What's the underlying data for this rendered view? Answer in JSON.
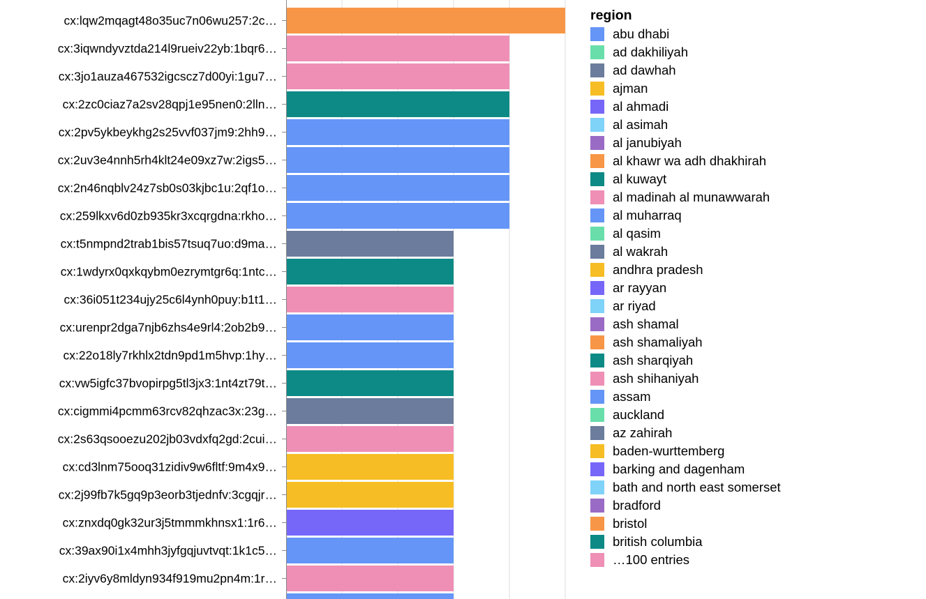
{
  "chart_data": {
    "type": "bar",
    "orientation": "horizontal",
    "x_axis": {
      "min": 0,
      "max": 5,
      "grid": true
    },
    "categories": [
      "cx:lqw2mqagt48o35uc7n06wu257:2c…",
      "cx:3iqwndyvztda214l9rueiv22yb:1bqr6…",
      "cx:3jo1auza467532igcscz7d00yi:1gu7…",
      "cx:2zc0ciaz7a2sv28qpj1e95nen0:2lln…",
      "cx:2pv5ykbeykhg2s25vvf037jm9:2hh9…",
      "cx:2uv3e4nnh5rh4klt24e09xz7w:2igs5…",
      "cx:2n46nqblv24z7sb0s03kjbc1u:2qf1o…",
      "cx:259lkxv6d0zb935kr3xcqrgdna:rkho…",
      "cx:t5nmpnd2trab1bis57tsuq7uo:d9ma…",
      "cx:1wdyrx0qxkqybm0ezrymtgr6q:1ntc…",
      "cx:36i051t234ujy25c6l4ynh0puy:b1t1…",
      "cx:urenpr2dga7njb6zhs4e9rl4:2ob2b9…",
      "cx:22o18ly7rkhlx2tdn9pd1m5hvp:1hy…",
      "cx:vw5igfc37bvopirpg5tl3jx3:1nt4zt79t…",
      "cx:cigmmi4pcmm63rcv82qhzac3x:23g…",
      "cx:2s63qsooezu202jb03vdxfq2gd:2cui…",
      "cx:cd3lnm75ooq31zidiv9w6fltf:9m4x9…",
      "cx:2j99fb7k5gq9p3eorb3tjednfv:3cgqjr…",
      "cx:znxdq0gk32ur3j5tmmmkhnsx1:1r6…",
      "cx:39ax90i1x4mhh3jyfgqjuvtvqt:1k1c5…",
      "cx:2iyv6y8mldyn934f919mu2pn4m:1r…",
      ""
    ],
    "values": [
      5,
      4,
      4,
      4,
      4,
      4,
      4,
      4,
      3,
      3,
      3,
      3,
      3,
      3,
      3,
      3,
      3,
      3,
      3,
      3,
      3,
      3
    ],
    "bar_colors": [
      "#f79646",
      "#ef8fb5",
      "#ef8fb5",
      "#0d8a86",
      "#6495f7",
      "#6495f7",
      "#6495f7",
      "#6495f7",
      "#6b7c9c",
      "#0d8a86",
      "#ef8fb5",
      "#6495f7",
      "#6495f7",
      "#0d8a86",
      "#6b7c9c",
      "#ef8fb5",
      "#f6be24",
      "#f6be24",
      "#7667f9",
      "#6495f7",
      "#ef8fb5",
      "#6495f7"
    ],
    "legend": {
      "title": "region",
      "placement": "right",
      "entries": [
        {
          "label": "abu dhabi",
          "color": "#6495f7"
        },
        {
          "label": "ad dakhiliyah",
          "color": "#69deaa"
        },
        {
          "label": "ad dawhah",
          "color": "#6b7c9c"
        },
        {
          "label": "ajman",
          "color": "#f6be24"
        },
        {
          "label": "al ahmadi",
          "color": "#7667f9"
        },
        {
          "label": "al asimah",
          "color": "#7fd2f8"
        },
        {
          "label": "al janubiyah",
          "color": "#9a6bc5"
        },
        {
          "label": "al khawr wa adh dhakhirah",
          "color": "#f79646"
        },
        {
          "label": "al kuwayt",
          "color": "#0d8a86"
        },
        {
          "label": "al madinah al munawwarah",
          "color": "#ef8fb5"
        },
        {
          "label": "al muharraq",
          "color": "#6495f7"
        },
        {
          "label": "al qasim",
          "color": "#69deaa"
        },
        {
          "label": "al wakrah",
          "color": "#6b7c9c"
        },
        {
          "label": "andhra pradesh",
          "color": "#f6be24"
        },
        {
          "label": "ar rayyan",
          "color": "#7667f9"
        },
        {
          "label": "ar riyad",
          "color": "#7fd2f8"
        },
        {
          "label": "ash shamal",
          "color": "#9a6bc5"
        },
        {
          "label": "ash shamaliyah",
          "color": "#f79646"
        },
        {
          "label": "ash sharqiyah",
          "color": "#0d8a86"
        },
        {
          "label": "ash shihaniyah",
          "color": "#ef8fb5"
        },
        {
          "label": "assam",
          "color": "#6495f7"
        },
        {
          "label": "auckland",
          "color": "#69deaa"
        },
        {
          "label": "az zahirah",
          "color": "#6b7c9c"
        },
        {
          "label": "baden-wurttemberg",
          "color": "#f6be24"
        },
        {
          "label": "barking and dagenham",
          "color": "#7667f9"
        },
        {
          "label": "bath and north east somerset",
          "color": "#7fd2f8"
        },
        {
          "label": "bradford",
          "color": "#9a6bc5"
        },
        {
          "label": "bristol",
          "color": "#f79646"
        },
        {
          "label": "british columbia",
          "color": "#0d8a86"
        },
        {
          "label": "…100 entries",
          "color": "#ef8fb5"
        }
      ]
    }
  }
}
